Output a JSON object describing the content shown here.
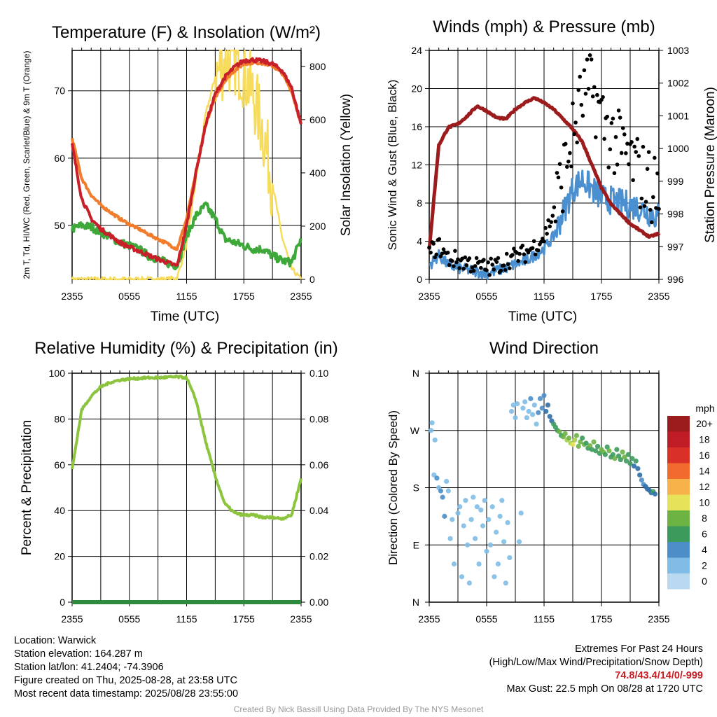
{
  "chart_data": [
    {
      "type": "line",
      "title": "Temperature (F) & Insolation (W/m²)",
      "xlabel": "Time (UTC)",
      "ylabel": "2m T, Td, HI/WC (Red, Green, Scarlet/Blue) & 9m T (Orange)",
      "y2label": "Solar Insolation (Yellow)",
      "x_ticks": [
        "2355",
        "0555",
        "1155",
        "1755",
        "2355"
      ],
      "y_ticks": [
        "50",
        "60",
        "70"
      ],
      "y2_ticks": [
        "0",
        "200",
        "400",
        "600",
        "800"
      ],
      "ylim": [
        42,
        76
      ],
      "y2lim": [
        0,
        860
      ],
      "hours": [
        0,
        1,
        2,
        3,
        4,
        5,
        6,
        7,
        8,
        9,
        10,
        11,
        12,
        13,
        14,
        15,
        16,
        17,
        18,
        19,
        20,
        21,
        22,
        23,
        24
      ],
      "series": [
        {
          "id": "temp_2m",
          "color": "#c8202a",
          "values": [
            62,
            54,
            51,
            49.5,
            48.5,
            47.5,
            46.8,
            46.2,
            45.6,
            45,
            44.5,
            44,
            50,
            58,
            65,
            69.5,
            72,
            73.5,
            74.5,
            74.6,
            74.4,
            74,
            73,
            70.5,
            65
          ]
        },
        {
          "id": "temp_9m",
          "color": "#f07c2c",
          "values": [
            63,
            57,
            54.5,
            53,
            52,
            51,
            50.2,
            49.5,
            48.7,
            48,
            47.3,
            46.5,
            51,
            58,
            65,
            69,
            71.5,
            73,
            74,
            74.2,
            74.1,
            73.7,
            72.6,
            70,
            65
          ]
        },
        {
          "id": "dewpoint",
          "color": "#3fa83a",
          "values": [
            49.5,
            50,
            49.8,
            49,
            48.3,
            47.5,
            47,
            46.5,
            45.5,
            45,
            44.4,
            44,
            48.5,
            51.5,
            53,
            51,
            48,
            47.5,
            47,
            46.5,
            46.5,
            45.5,
            44.8,
            44.5,
            48
          ]
        },
        {
          "id": "insolation",
          "axis": "y2",
          "color": "#f7dc5c",
          "values": [
            0,
            0,
            0,
            0,
            0,
            0,
            0,
            0,
            0,
            0,
            0,
            5,
            130,
            380,
            620,
            760,
            820,
            830,
            780,
            690,
            560,
            360,
            160,
            40,
            0
          ]
        }
      ]
    },
    {
      "type": "line",
      "title": "Winds (mph) & Pressure (mb)",
      "xlabel": "Time (UTC)",
      "ylabel": "Sonic Wind & Gust (Blue, Black)",
      "y2label": "Station Pressure (Maroon)",
      "x_ticks": [
        "2355",
        "0555",
        "1155",
        "1755",
        "2355"
      ],
      "y_ticks": [
        "0",
        "4",
        "8",
        "12",
        "16",
        "20",
        "24"
      ],
      "y2_ticks": [
        "996",
        "997",
        "998",
        "999",
        "1000",
        "1001",
        "1002",
        "1003"
      ],
      "ylim": [
        0,
        24
      ],
      "y2lim": [
        996,
        1003
      ],
      "hours": [
        0,
        1,
        2,
        3,
        4,
        5,
        6,
        7,
        8,
        9,
        10,
        11,
        12,
        13,
        14,
        15,
        16,
        17,
        18,
        19,
        20,
        21,
        22,
        23,
        24
      ],
      "series": [
        {
          "id": "wind_speed",
          "color": "#4a8fd0",
          "values": [
            1.5,
            2.5,
            1.5,
            1.2,
            1,
            0.8,
            0.6,
            0.9,
            1.2,
            1.6,
            1.9,
            2.5,
            3.2,
            4.5,
            7,
            9.5,
            10.5,
            9.5,
            8.5,
            8.3,
            8,
            7.8,
            7.5,
            7,
            6.5
          ]
        },
        {
          "id": "wind_gust",
          "color": "#000000",
          "values": [
            2.8,
            3.5,
            2.2,
            2,
            1.8,
            1.4,
            1.2,
            1.4,
            2,
            2.4,
            2.7,
            3.5,
            4.5,
            7,
            11,
            15,
            19,
            20,
            17,
            15,
            13.5,
            12.5,
            11,
            10,
            9
          ]
        },
        {
          "id": "pressure",
          "axis": "y2",
          "color": "#9c1c1e",
          "values": [
            996.9,
            1000.1,
            1000.65,
            1000.75,
            1001,
            1001.3,
            1001.15,
            1000.95,
            1000.9,
            1001.2,
            1001.4,
            1001.55,
            1001.4,
            1001.2,
            1000.9,
            1000.6,
            1000.2,
            999.5,
            998.8,
            998.3,
            998,
            997.7,
            997.5,
            997.3,
            997.4
          ]
        }
      ]
    },
    {
      "type": "line",
      "title": "Relative Humidity (%) & Precipitation (in)",
      "xlabel": "",
      "ylabel": "Percent & Precipitation",
      "x_ticks": [
        "2355",
        "0555",
        "1155",
        "1755",
        "2355"
      ],
      "y_ticks": [
        "0",
        "20",
        "40",
        "60",
        "80",
        "100"
      ],
      "y2_ticks": [
        "0.00",
        "0.02",
        "0.04",
        "0.06",
        "0.08",
        "0.10"
      ],
      "ylim": [
        0,
        100
      ],
      "y2lim": [
        0,
        0.1
      ],
      "hours": [
        0,
        1,
        2,
        3,
        4,
        5,
        6,
        7,
        8,
        9,
        10,
        11,
        12,
        13,
        14,
        15,
        16,
        17,
        18,
        19,
        20,
        21,
        22,
        23,
        24
      ],
      "series": [
        {
          "id": "rh",
          "color": "#8cc43f",
          "values": [
            58,
            84,
            90,
            94,
            96,
            97,
            97.5,
            97.8,
            98,
            98,
            98.2,
            98.4,
            98,
            88,
            70,
            55,
            43,
            39,
            38,
            38,
            37,
            37,
            36.5,
            38,
            54
          ]
        },
        {
          "id": "precip",
          "axis": "y2",
          "color": "#2e8b3e",
          "values": [
            0,
            0,
            0,
            0,
            0,
            0,
            0,
            0,
            0,
            0,
            0,
            0,
            0,
            0,
            0,
            0,
            0,
            0,
            0,
            0,
            0,
            0,
            0,
            0,
            0
          ]
        }
      ]
    },
    {
      "type": "scatter",
      "title": "Wind Direction",
      "xlabel": "",
      "ylabel": "Direction (Colored By Speed)",
      "x_ticks": [
        "2355",
        "0555",
        "1155",
        "1755",
        "2355"
      ],
      "y_ticks": [
        "N",
        "E",
        "S",
        "W",
        "N"
      ],
      "ylim": [
        0,
        360
      ],
      "colorbar_title": "mph",
      "colorbar_labels": [
        "20+",
        "18",
        "16",
        "14",
        "12",
        "10",
        "8",
        "6",
        "4",
        "2",
        "0"
      ],
      "colorbar_colors": [
        "#b8d9f0",
        "#80bce6",
        "#4d8ec8",
        "#2f6ea8",
        "#3b9a5c",
        "#6cb344",
        "#a3cf4a",
        "#e6e25a",
        "#f7b24a",
        "#f26a2e",
        "#d93128",
        "#c01c26",
        "#9c1c1e"
      ],
      "points_hours_dir_speed": [
        [
          0.2,
          270,
          1
        ],
        [
          0.3,
          282,
          2
        ],
        [
          0.5,
          200,
          1
        ],
        [
          0.6,
          255,
          1.5
        ],
        [
          0.8,
          195,
          3.5
        ],
        [
          1.0,
          180,
          2.5
        ],
        [
          1.2,
          175,
          4
        ],
        [
          1.4,
          165,
          3
        ],
        [
          1.6,
          135,
          4.5
        ],
        [
          1.8,
          190,
          1.5
        ],
        [
          2.0,
          175,
          1
        ],
        [
          2.2,
          100,
          1
        ],
        [
          2.4,
          130,
          1
        ],
        [
          2.6,
          60,
          1
        ],
        [
          3.0,
          140,
          1
        ],
        [
          3.2,
          150,
          1.5
        ],
        [
          3.4,
          40,
          1
        ],
        [
          3.6,
          120,
          1
        ],
        [
          3.8,
          160,
          1.5
        ],
        [
          4.0,
          90,
          1
        ],
        [
          4.2,
          30,
          1
        ],
        [
          4.4,
          130,
          1
        ],
        [
          4.6,
          165,
          1.5
        ],
        [
          4.8,
          100,
          1
        ],
        [
          5.0,
          150,
          1.5
        ],
        [
          5.2,
          60,
          1
        ],
        [
          5.4,
          145,
          1
        ],
        [
          5.6,
          120,
          1
        ],
        [
          5.8,
          160,
          1
        ],
        [
          6.0,
          80,
          1
        ],
        [
          6.2,
          130,
          1
        ],
        [
          6.4,
          90,
          1
        ],
        [
          6.6,
          150,
          1.5
        ],
        [
          6.8,
          40,
          1
        ],
        [
          7.0,
          110,
          1
        ],
        [
          7.2,
          60,
          1
        ],
        [
          7.4,
          135,
          1
        ],
        [
          7.6,
          160,
          1
        ],
        [
          7.8,
          95,
          1
        ],
        [
          8.0,
          30,
          1
        ],
        [
          8.2,
          125,
          1
        ],
        [
          8.4,
          70,
          1
        ],
        [
          8.6,
          300,
          1
        ],
        [
          8.8,
          310,
          1.5
        ],
        [
          9.0,
          290,
          1
        ],
        [
          9.2,
          312,
          2
        ],
        [
          9.4,
          95,
          1
        ],
        [
          9.6,
          140,
          1
        ],
        [
          9.8,
          305,
          2
        ],
        [
          10.0,
          315,
          2.5
        ],
        [
          10.2,
          290,
          1.5
        ],
        [
          10.4,
          300,
          2
        ],
        [
          10.6,
          320,
          3
        ],
        [
          10.8,
          295,
          2
        ],
        [
          11.0,
          310,
          2.5
        ],
        [
          11.2,
          280,
          2
        ],
        [
          11.4,
          298,
          3
        ],
        [
          11.6,
          320,
          3.5
        ],
        [
          11.8,
          305,
          3
        ],
        [
          12.0,
          325,
          4
        ],
        [
          12.2,
          300,
          5
        ],
        [
          12.4,
          310,
          6
        ],
        [
          12.6,
          292,
          6.5
        ],
        [
          12.8,
          285,
          5
        ],
        [
          13.0,
          280,
          7
        ],
        [
          13.2,
          275,
          8
        ],
        [
          13.4,
          270,
          7.5
        ],
        [
          13.6,
          268,
          9
        ],
        [
          13.8,
          262,
          8
        ],
        [
          14.0,
          260,
          10
        ],
        [
          14.2,
          265,
          9
        ],
        [
          14.4,
          255,
          11
        ],
        [
          14.6,
          258,
          10
        ],
        [
          14.8,
          250,
          12.5
        ],
        [
          15.0,
          248,
          14
        ],
        [
          15.2,
          255,
          11
        ],
        [
          15.4,
          262,
          9.5
        ],
        [
          15.6,
          245,
          9
        ],
        [
          15.8,
          252,
          10.5
        ],
        [
          16.0,
          258,
          8
        ],
        [
          16.2,
          248,
          9.5
        ],
        [
          16.4,
          250,
          8.5
        ],
        [
          16.6,
          242,
          7.5
        ],
        [
          16.8,
          246,
          9
        ],
        [
          17.0,
          240,
          8
        ],
        [
          17.2,
          252,
          9
        ],
        [
          17.4,
          238,
          8.5
        ],
        [
          17.6,
          245,
          7
        ],
        [
          17.8,
          234,
          8
        ],
        [
          18.0,
          240,
          9
        ],
        [
          18.2,
          236,
          10.5
        ],
        [
          18.4,
          232,
          8
        ],
        [
          18.6,
          244,
          7
        ],
        [
          18.8,
          238,
          9
        ],
        [
          19.0,
          228,
          7
        ],
        [
          19.2,
          232,
          8
        ],
        [
          19.4,
          226,
          10
        ],
        [
          19.6,
          240,
          7.5
        ],
        [
          19.8,
          230,
          8
        ],
        [
          20.0,
          224,
          7
        ],
        [
          20.2,
          236,
          9
        ],
        [
          20.4,
          228,
          10
        ],
        [
          20.6,
          222,
          7
        ],
        [
          20.8,
          232,
          8
        ],
        [
          21.0,
          218,
          7
        ],
        [
          21.2,
          226,
          8.5
        ],
        [
          21.4,
          214,
          6
        ],
        [
          21.6,
          222,
          7
        ],
        [
          21.8,
          210,
          6
        ],
        [
          22.0,
          200,
          5
        ],
        [
          22.2,
          192,
          4.5
        ],
        [
          22.4,
          185,
          4
        ],
        [
          22.6,
          182,
          5
        ],
        [
          22.8,
          178,
          5.5
        ],
        [
          23.0,
          176,
          6
        ],
        [
          23.2,
          172,
          6
        ],
        [
          23.4,
          174,
          7
        ],
        [
          23.6,
          170,
          6.5
        ]
      ]
    }
  ],
  "info": {
    "location": "Location: Warwick",
    "elevation": "Station elevation: 164.287 m",
    "latlon": "Station lat/lon: 41.2404; -74.3906",
    "created": "Figure created on Thu, 2025-08-28, at 23:58 UTC",
    "recent": "Most recent data timestamp: 2025/08/28 23:55:00",
    "extremes_title": "Extremes For Past 24 Hours",
    "extremes_legend": "(High/Low/Max Wind/Precipitation/Snow Depth)",
    "extremes_values": "74.8/43.4/14/0/-999",
    "max_gust": "Max Gust: 22.5 mph On 08/28 at 1720 UTC"
  },
  "credit": "Created By Nick Bassill Using Data Provided By The NYS Mesonet"
}
